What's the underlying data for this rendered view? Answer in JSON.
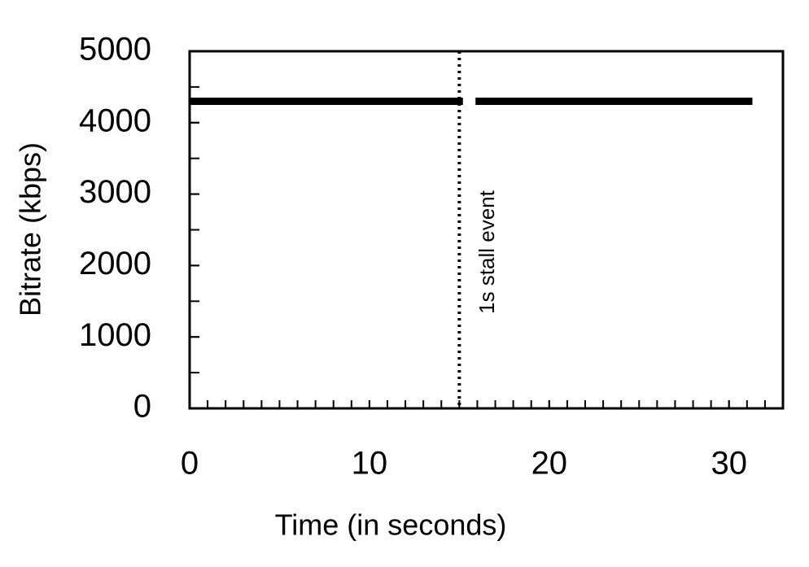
{
  "chart_data": {
    "type": "line",
    "xlabel": "Time (in seconds)",
    "ylabel": "Bitrate (kbps)",
    "x": [
      0,
      15.2,
      15.5,
      15.9,
      31.3
    ],
    "series": [
      {
        "color": "#000000",
        "values": [
          4300,
          4300,
          null,
          4300,
          4300
        ]
      }
    ],
    "xlim": [
      0,
      33
    ],
    "xticks": [
      0,
      10,
      20,
      30
    ],
    "x_minor_step": 1,
    "ylim": [
      0,
      5000
    ],
    "yticks": [
      0,
      1000,
      2000,
      3000,
      4000,
      5000
    ],
    "y_minor_step": 500,
    "vline": 15,
    "annotation": "1s stall event"
  }
}
